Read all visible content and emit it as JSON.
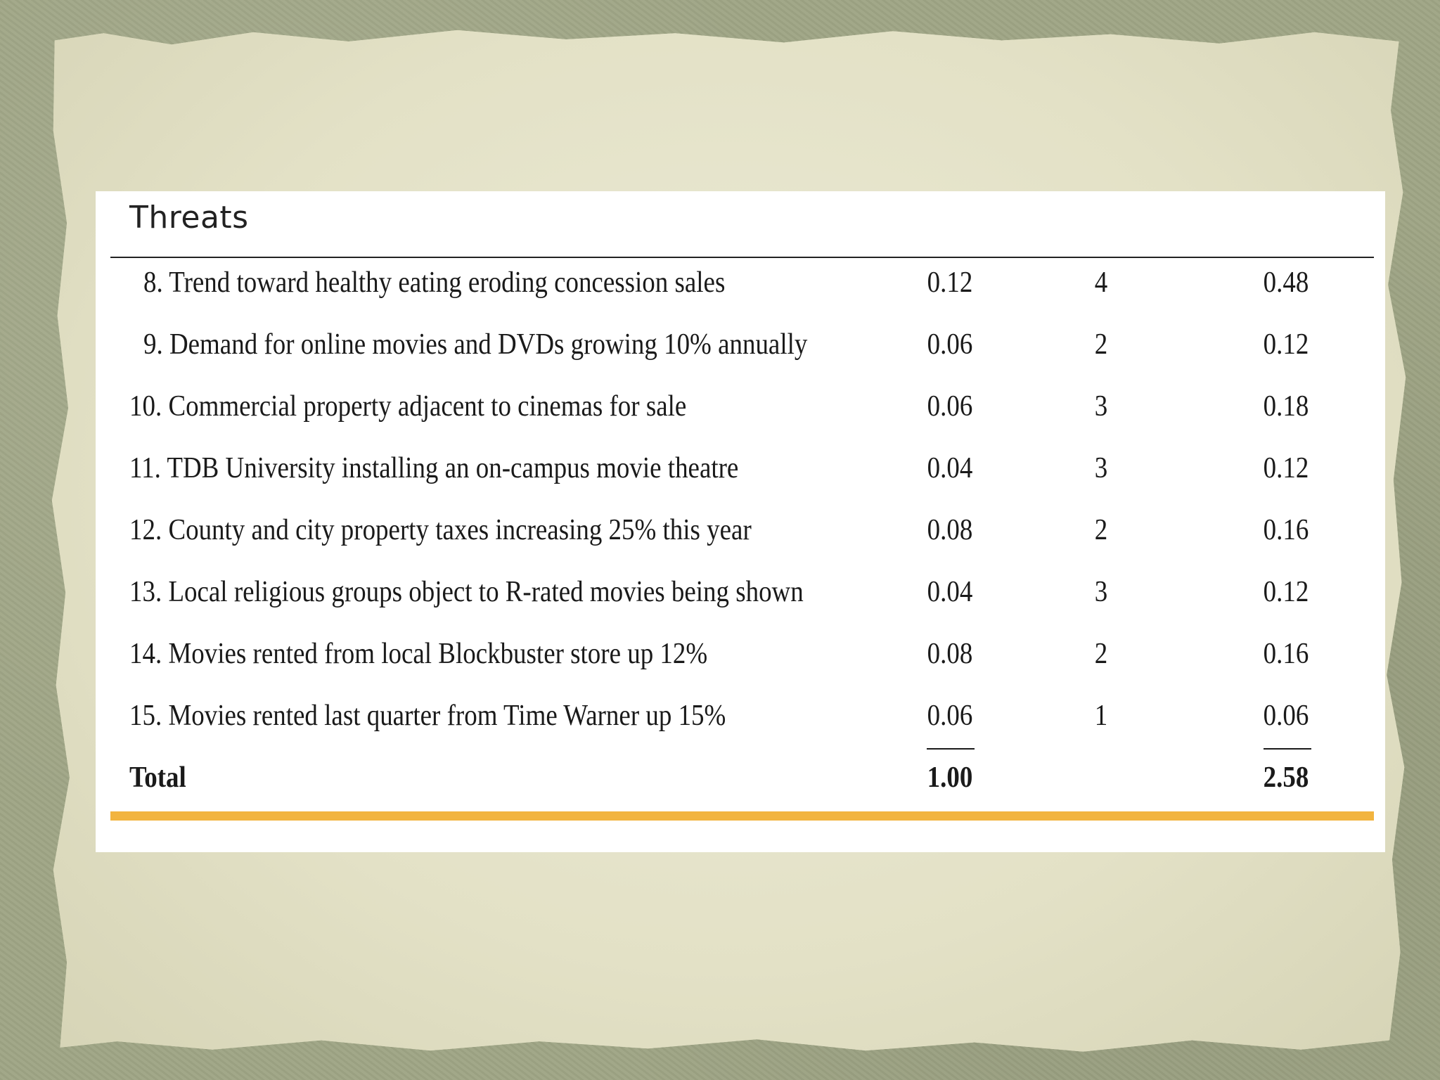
{
  "table": {
    "title": "Threats",
    "rows": [
      {
        "label": "8. Trend toward healthy eating eroding concession sales",
        "weight": "0.12",
        "rating": "4",
        "score": "0.48"
      },
      {
        "label": "9. Demand for online movies and DVDs growing 10% annually",
        "weight": "0.06",
        "rating": "2",
        "score": "0.12"
      },
      {
        "label": "10. Commercial property adjacent to cinemas for sale",
        "weight": "0.06",
        "rating": "3",
        "score": "0.18"
      },
      {
        "label": "11. TDB University installing an on-campus movie theatre",
        "weight": "0.04",
        "rating": "3",
        "score": "0.12"
      },
      {
        "label": "12. County and city property taxes increasing 25% this year",
        "weight": "0.08",
        "rating": "2",
        "score": "0.16"
      },
      {
        "label": "13. Local religious groups object to R-rated movies being shown",
        "weight": "0.04",
        "rating": "3",
        "score": "0.12"
      },
      {
        "label": "14. Movies rented from local Blockbuster store up 12%",
        "weight": "0.08",
        "rating": "2",
        "score": "0.16"
      },
      {
        "label": "15. Movies rented last quarter from Time Warner up 15%",
        "weight": "0.06",
        "rating": "1",
        "score": "0.06"
      }
    ],
    "total": {
      "label": "Total",
      "weight": "1.00",
      "score": "2.58"
    }
  },
  "colors": {
    "accent_rule": "#f2b43f",
    "panel": "#ffffff",
    "paper": "#e5e3c9",
    "backdrop": "#9fa585"
  }
}
